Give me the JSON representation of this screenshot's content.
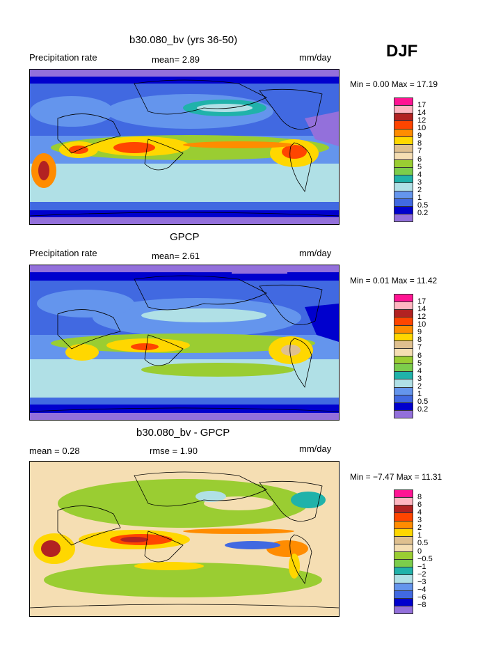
{
  "season": "DJF",
  "panels": [
    {
      "title": "b30.080_bv (yrs 36-50)",
      "left_label": "Precipitation rate",
      "center_label": "mean=    2.89",
      "units": "mm/day",
      "minmax": "Min =    0.00 Max =  17.19",
      "colorbar_labels": [
        "17",
        "14",
        "12",
        "10",
        "9",
        "8",
        "7",
        "6",
        "5",
        "4",
        "3",
        "2",
        "1",
        "0.5",
        "0.2"
      ]
    },
    {
      "title": "GPCP",
      "left_label": "Precipitation rate",
      "center_label": "mean=    2.61",
      "units": "mm/day",
      "minmax": "Min =    0.01 Max =  11.42",
      "colorbar_labels": [
        "17",
        "14",
        "12",
        "10",
        "9",
        "8",
        "7",
        "6",
        "5",
        "4",
        "3",
        "2",
        "1",
        "0.5",
        "0.2"
      ]
    },
    {
      "title": "b30.080_bv - GPCP",
      "left_label": "mean =    0.28",
      "center_label": "rmse =    1.90",
      "units": "mm/day",
      "minmax": "Min =  −7.47 Max =  11.31",
      "colorbar_labels": [
        "8",
        "6",
        "4",
        "3",
        "2",
        "1",
        "0.5",
        "0",
        "−0.5",
        "−1",
        "−2",
        "−3",
        "−4",
        "−6",
        "−8"
      ]
    }
  ],
  "colors": {
    "precip": [
      "#ff1493",
      "#ffb6c1",
      "#b22222",
      "#ff4500",
      "#ff8c00",
      "#ffd700",
      "#dfc08f",
      "#f5deb3",
      "#9acd32",
      "#7ccd4c",
      "#20b2aa",
      "#b0e0e6",
      "#6495ed",
      "#4169e1",
      "#0000cd",
      "#9370db"
    ],
    "diff": [
      "#ff1493",
      "#ffb6c1",
      "#b22222",
      "#ff4500",
      "#ff8c00",
      "#ffd700",
      "#dfc08f",
      "#f5deb3",
      "#9acd32",
      "#7ccd4c",
      "#20b2aa",
      "#b0e0e6",
      "#6495ed",
      "#4169e1",
      "#0000cd",
      "#9370db"
    ]
  }
}
